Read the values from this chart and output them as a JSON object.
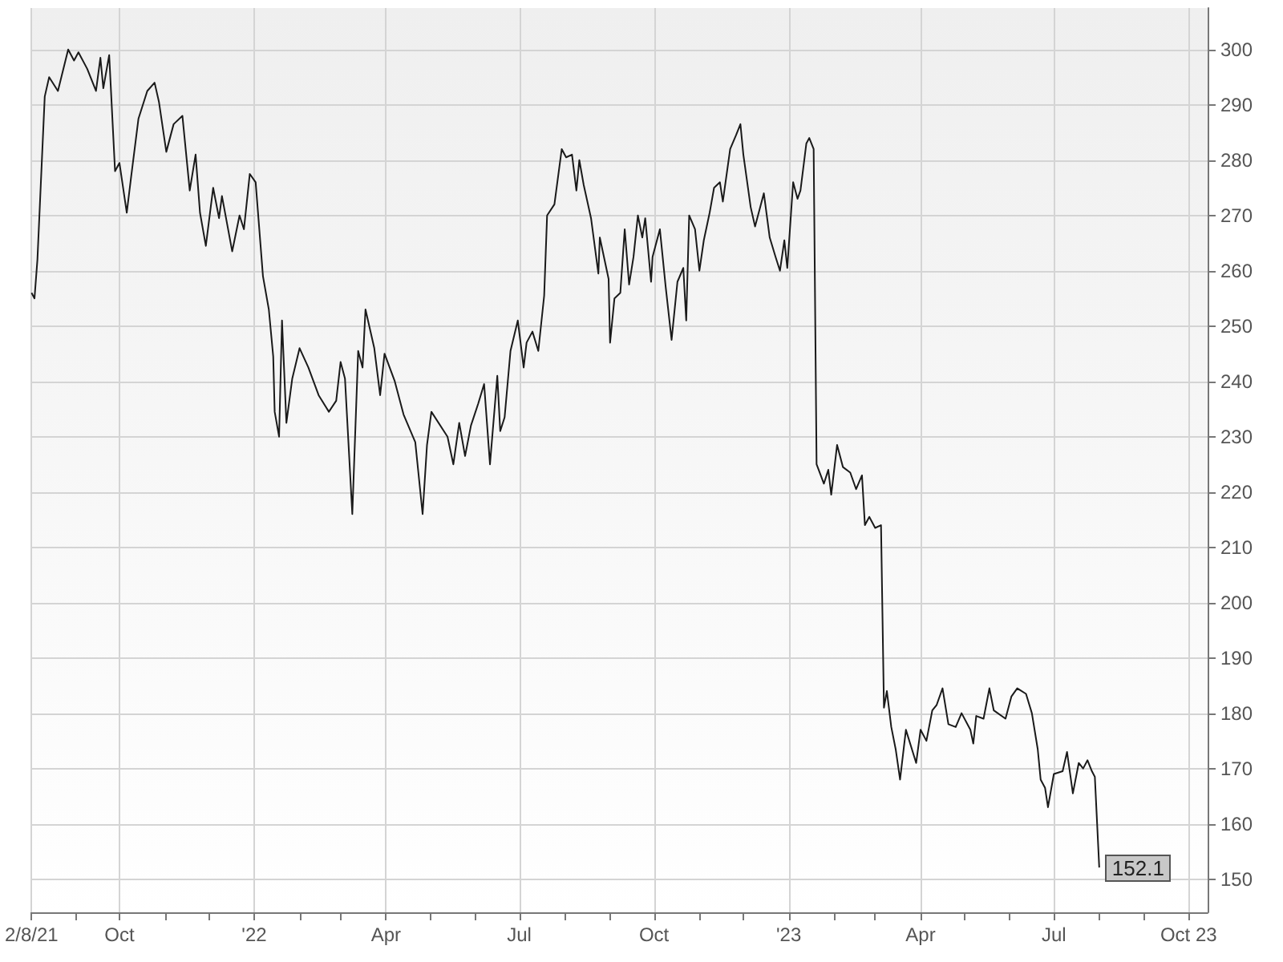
{
  "chart_data": {
    "type": "line",
    "grid": true,
    "line_style": "solid",
    "xlim": [
      "2021-08-02",
      "2023-10-14"
    ],
    "xticks": [
      {
        "value": "2021-08-02",
        "label": "2/8/21"
      },
      {
        "value": "2021-09-01",
        "label": null
      },
      {
        "value": "2021-10-01",
        "label": "Oct"
      },
      {
        "value": "2021-11-01",
        "label": null
      },
      {
        "value": "2021-12-01",
        "label": null
      },
      {
        "value": "2022-01-01",
        "label": "'22"
      },
      {
        "value": "2022-02-01",
        "label": null
      },
      {
        "value": "2022-03-01",
        "label": null
      },
      {
        "value": "2022-04-01",
        "label": "Apr"
      },
      {
        "value": "2022-05-01",
        "label": null
      },
      {
        "value": "2022-06-01",
        "label": null
      },
      {
        "value": "2022-07-01",
        "label": "Jul"
      },
      {
        "value": "2022-08-01",
        "label": null
      },
      {
        "value": "2022-09-01",
        "label": null
      },
      {
        "value": "2022-10-01",
        "label": "Oct"
      },
      {
        "value": "2022-11-01",
        "label": null
      },
      {
        "value": "2022-12-01",
        "label": null
      },
      {
        "value": "2023-01-01",
        "label": "'23"
      },
      {
        "value": "2023-02-01",
        "label": null
      },
      {
        "value": "2023-03-01",
        "label": null
      },
      {
        "value": "2023-04-01",
        "label": "Apr"
      },
      {
        "value": "2023-05-01",
        "label": null
      },
      {
        "value": "2023-06-01",
        "label": null
      },
      {
        "value": "2023-07-01",
        "label": "Jul"
      },
      {
        "value": "2023-08-01",
        "label": null
      },
      {
        "value": "2023-09-01",
        "label": null
      },
      {
        "value": "2023-10-01",
        "label": "Oct 23"
      }
    ],
    "ylim": [
      144,
      307.5
    ],
    "yticks": [
      150,
      160,
      170,
      180,
      190,
      200,
      210,
      220,
      230,
      240,
      250,
      260,
      270,
      280,
      290,
      300
    ],
    "annotations": [
      {
        "text": "152.1",
        "x": "2023-08-01",
        "y": 152.1
      }
    ],
    "series": [
      {
        "color": "#1a1a1a",
        "x": [
          "2021-08-02",
          "2021-08-04",
          "2021-08-06",
          "2021-08-11",
          "2021-08-14",
          "2021-08-20",
          "2021-08-27",
          "2021-08-31",
          "2021-09-03",
          "2021-09-09",
          "2021-09-15",
          "2021-09-18",
          "2021-09-20",
          "2021-09-24",
          "2021-09-28",
          "2021-10-01",
          "2021-10-06",
          "2021-10-09",
          "2021-10-14",
          "2021-10-20",
          "2021-10-25",
          "2021-10-28",
          "2021-11-02",
          "2021-11-07",
          "2021-11-13",
          "2021-11-18",
          "2021-11-22",
          "2021-11-25",
          "2021-11-29",
          "2021-12-04",
          "2021-12-08",
          "2021-12-10",
          "2021-12-17",
          "2021-12-22",
          "2021-12-25",
          "2021-12-29",
          "2022-01-02",
          "2022-01-07",
          "2022-01-11",
          "2022-01-14",
          "2022-01-15",
          "2022-01-18",
          "2022-01-20",
          "2022-01-23",
          "2022-01-27",
          "2022-02-01",
          "2022-02-07",
          "2022-02-14",
          "2022-02-21",
          "2022-02-26",
          "2022-03-01",
          "2022-03-04",
          "2022-03-09",
          "2022-03-13",
          "2022-03-16",
          "2022-03-18",
          "2022-03-24",
          "2022-03-28",
          "2022-03-31",
          "2022-04-07",
          "2022-04-13",
          "2022-04-21",
          "2022-04-26",
          "2022-04-29",
          "2022-05-02",
          "2022-05-13",
          "2022-05-17",
          "2022-05-21",
          "2022-05-25",
          "2022-05-29",
          "2022-06-03",
          "2022-06-07",
          "2022-06-11",
          "2022-06-16",
          "2022-06-18",
          "2022-06-21",
          "2022-06-25",
          "2022-06-30",
          "2022-07-04",
          "2022-07-06",
          "2022-07-10",
          "2022-07-14",
          "2022-07-18",
          "2022-07-20",
          "2022-07-25",
          "2022-07-30",
          "2022-08-02",
          "2022-08-06",
          "2022-08-09",
          "2022-08-11",
          "2022-08-14",
          "2022-08-19",
          "2022-08-24",
          "2022-08-25",
          "2022-08-31",
          "2022-09-01",
          "2022-09-04",
          "2022-09-08",
          "2022-09-11",
          "2022-09-14",
          "2022-09-17",
          "2022-09-20",
          "2022-09-23",
          "2022-09-25",
          "2022-09-29",
          "2022-09-30",
          "2022-10-05",
          "2022-10-09",
          "2022-10-13",
          "2022-10-17",
          "2022-10-21",
          "2022-10-23",
          "2022-10-25",
          "2022-10-29",
          "2022-11-01",
          "2022-11-04",
          "2022-11-08",
          "2022-11-11",
          "2022-11-15",
          "2022-11-17",
          "2022-11-22",
          "2022-11-26",
          "2022-11-29",
          "2022-12-01",
          "2022-12-06",
          "2022-12-09",
          "2022-12-15",
          "2022-12-19",
          "2022-12-23",
          "2022-12-26",
          "2022-12-29",
          "2022-12-31",
          "2023-01-04",
          "2023-01-07",
          "2023-01-09",
          "2023-01-13",
          "2023-01-15",
          "2023-01-18",
          "2023-01-20",
          "2023-01-25",
          "2023-01-28",
          "2023-01-30",
          "2023-02-03",
          "2023-02-07",
          "2023-02-12",
          "2023-02-16",
          "2023-02-20",
          "2023-02-22",
          "2023-02-25",
          "2023-03-01",
          "2023-03-05",
          "2023-03-07",
          "2023-03-09",
          "2023-03-12",
          "2023-03-15",
          "2023-03-18",
          "2023-03-22",
          "2023-03-29",
          "2023-04-01",
          "2023-04-05",
          "2023-04-09",
          "2023-04-12",
          "2023-04-16",
          "2023-04-20",
          "2023-04-25",
          "2023-04-29",
          "2023-05-05",
          "2023-05-07",
          "2023-05-09",
          "2023-05-14",
          "2023-05-18",
          "2023-05-21",
          "2023-05-29",
          "2023-06-02",
          "2023-06-06",
          "2023-06-12",
          "2023-06-16",
          "2023-06-20",
          "2023-06-22",
          "2023-06-25",
          "2023-06-27",
          "2023-07-01",
          "2023-07-07",
          "2023-07-10",
          "2023-07-14",
          "2023-07-18",
          "2023-07-21",
          "2023-07-24",
          "2023-07-27",
          "2023-07-29",
          "2023-08-01"
        ],
        "values": [
          256,
          255,
          262,
          291.5,
          295,
          292.5,
          300,
          298,
          299.5,
          296.5,
          292.5,
          298.5,
          293,
          299,
          278,
          279.5,
          270.5,
          277,
          287.5,
          292.5,
          294,
          290.5,
          281.5,
          286.5,
          288,
          274.5,
          281,
          270.5,
          264.5,
          275,
          269.5,
          273.5,
          263.5,
          270,
          267.5,
          277.5,
          276,
          259,
          253,
          244.5,
          234.5,
          230,
          251,
          232.5,
          240.5,
          246,
          242.5,
          237.5,
          234.5,
          236.5,
          243.5,
          240.5,
          216,
          245.5,
          242.5,
          253,
          246,
          237.5,
          245,
          240,
          234,
          229,
          216,
          228.5,
          234.5,
          230,
          225,
          232.5,
          226.5,
          232,
          236,
          239.5,
          225,
          241,
          231,
          233.5,
          245.5,
          251,
          242.5,
          247,
          249,
          245.5,
          255.5,
          270,
          272,
          282,
          280.5,
          281,
          274.5,
          280,
          275.5,
          269.5,
          259.5,
          266,
          258.5,
          247,
          255,
          256,
          267.5,
          257.5,
          262.5,
          270,
          266,
          269.5,
          258,
          262.5,
          267.5,
          257,
          247.5,
          258,
          260.5,
          251,
          270,
          267.5,
          260,
          265.5,
          270.5,
          275,
          276,
          272.5,
          282,
          284.5,
          286.5,
          281,
          271.5,
          268,
          274,
          266,
          262.5,
          260,
          265.5,
          260.5,
          276,
          273,
          274.5,
          283,
          284,
          282,
          225,
          221.5,
          224,
          219.5,
          228.5,
          224.5,
          223.5,
          220.5,
          223,
          214,
          215.5,
          213.5,
          214,
          181,
          184,
          177.5,
          173.5,
          168,
          177,
          171,
          177,
          175,
          180.5,
          181.5,
          184.5,
          178,
          177.5,
          180,
          177,
          174.5,
          179.5,
          179,
          184.5,
          180.5,
          179,
          183,
          184.5,
          183.5,
          180,
          173.5,
          168,
          166.5,
          163,
          169,
          169.5,
          173,
          165.5,
          171,
          170,
          171.5,
          169.5,
          168.5,
          152.1
        ]
      }
    ]
  }
}
